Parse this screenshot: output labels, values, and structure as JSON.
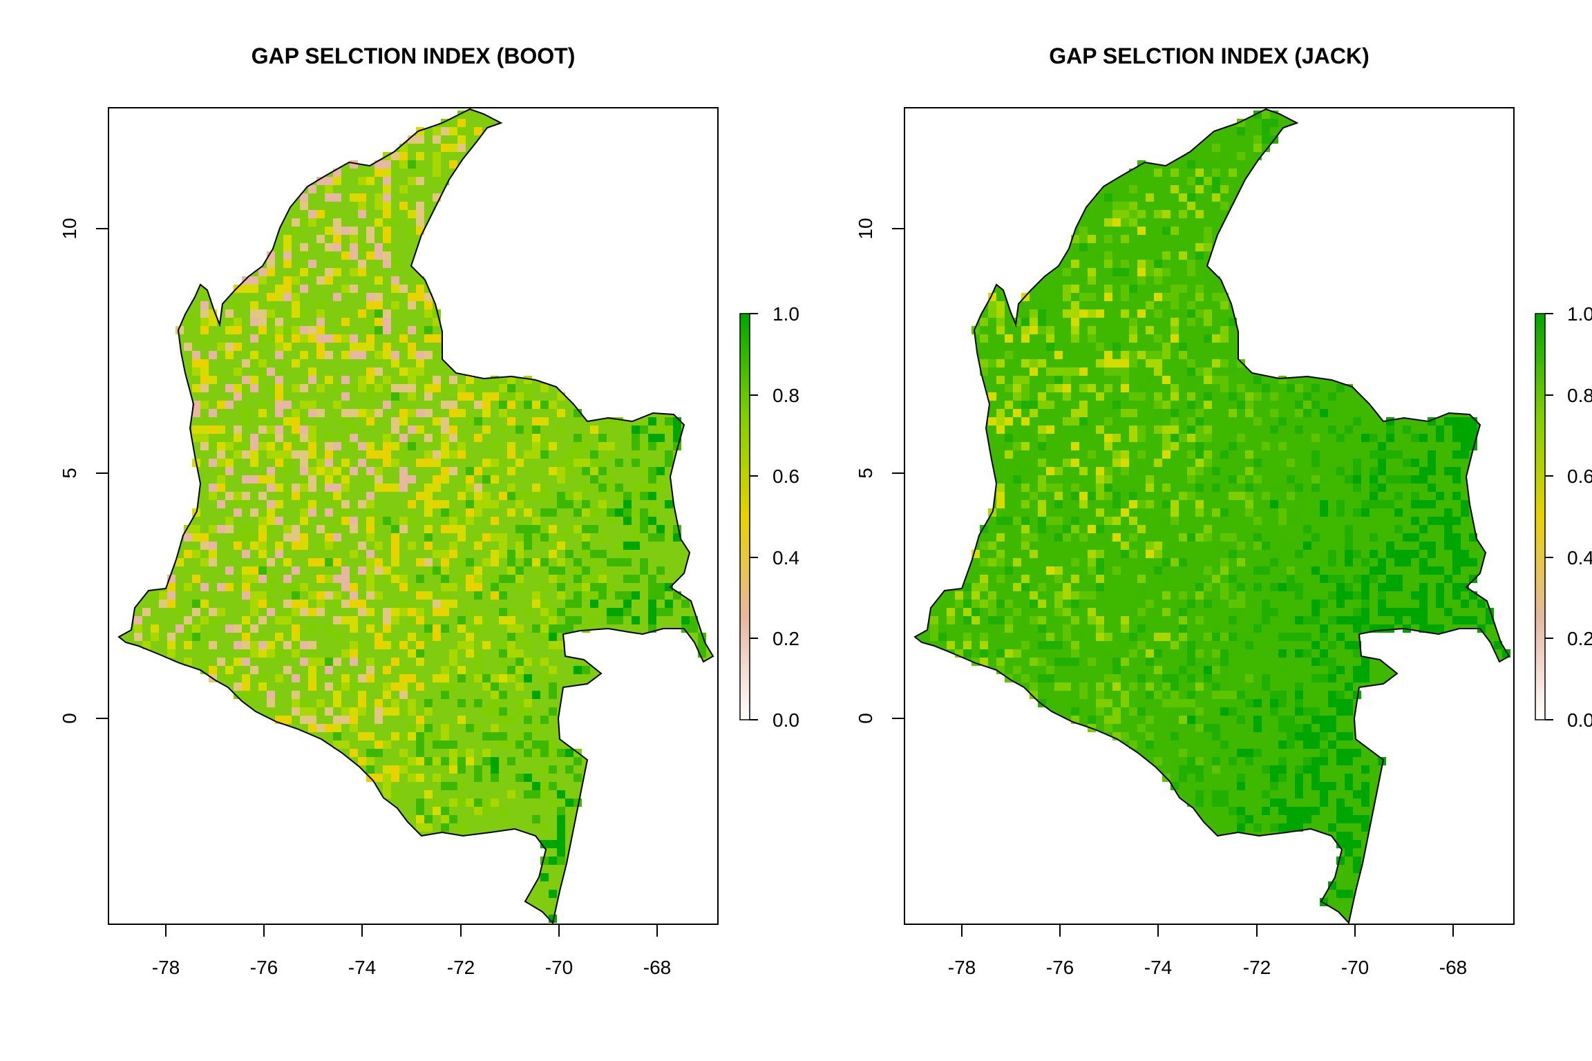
{
  "panels": [
    {
      "title": "GAP SELCTION INDEX (BOOT)",
      "x_ticks": [
        "-78",
        "-76",
        "-74",
        "-72",
        "-70",
        "-68"
      ],
      "y_ticks": [
        "0",
        "5",
        "10"
      ],
      "legend_ticks": [
        "0.0",
        "0.2",
        "0.4",
        "0.6",
        "0.8",
        "1.0"
      ],
      "variant": "boot"
    },
    {
      "title": "GAP SELCTION INDEX (JACK)",
      "x_ticks": [
        "-78",
        "-76",
        "-74",
        "-72",
        "-70",
        "-68"
      ],
      "y_ticks": [
        "0",
        "5",
        "10"
      ],
      "legend_ticks": [
        "0.0",
        "0.2",
        "0.4",
        "0.6",
        "0.8",
        "1.0"
      ],
      "variant": "jack"
    }
  ],
  "map_data": {
    "projection": "longitude / latitude (degrees)",
    "x_range": [
      -79.2,
      -66.8
    ],
    "y_range": [
      -4.2,
      12.4
    ],
    "value_range": [
      0.0,
      1.0
    ],
    "color_ramp": [
      "#ffffff",
      "#e6b8a2",
      "#e8d200",
      "#7fcf00",
      "#00a600"
    ],
    "boundary": "Colombia",
    "boundary_color": "#000000"
  },
  "colors": {
    "background": "#ffffff",
    "frame": "#000000"
  }
}
